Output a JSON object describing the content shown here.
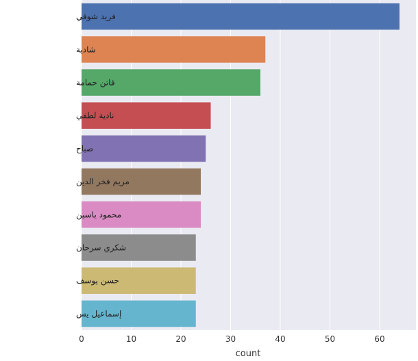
{
  "chart_data": {
    "type": "bar",
    "orientation": "horizontal",
    "title": "",
    "xlabel": "count",
    "ylabel": "",
    "xlim": [
      0,
      66
    ],
    "xticks": [
      0,
      10,
      20,
      30,
      40,
      50,
      60
    ],
    "grid": true,
    "background": "#eaeaf2",
    "categories": [
      "فريد شوقي",
      "شادية",
      "فاتن حمامة",
      "نادية لطفي",
      "صباح",
      "مريم فخر الدين",
      "محمود ياسين",
      "شكري سرحان",
      "حسن يوسف",
      "إسماعيل يس"
    ],
    "values": [
      64,
      37,
      36,
      26,
      25,
      24,
      24,
      23,
      23,
      23
    ],
    "colors": [
      "#4c72b0",
      "#dd8452",
      "#55a868",
      "#c44e52",
      "#8172b3",
      "#937860",
      "#da8bc3",
      "#8c8c8c",
      "#ccb974",
      "#64b5cd"
    ]
  }
}
